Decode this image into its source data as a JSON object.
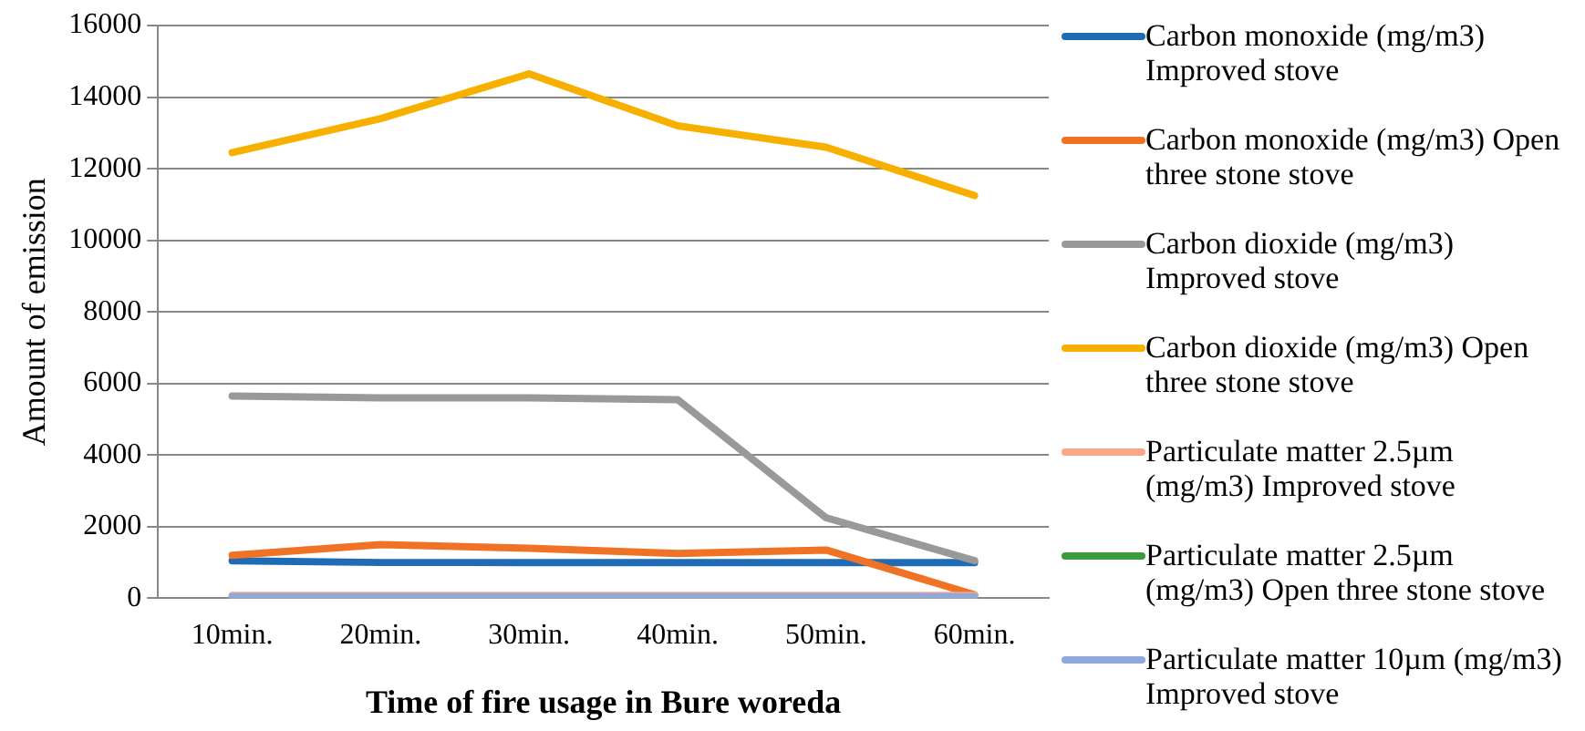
{
  "chart_data": {
    "type": "line",
    "xlabel": "Time of fire usage in Bure woreda",
    "ylabel": "Amount of emission",
    "categories": [
      "10min.",
      "20min.",
      "30min.",
      "40min.",
      "50min.",
      "60min."
    ],
    "series": [
      {
        "name": "Carbon monoxide (mg/m3) Improved stove",
        "color": "#1f6bb5",
        "values": [
          1050,
          1000,
          1000,
          1000,
          1000,
          1000
        ]
      },
      {
        "name": "Carbon monoxide (mg/m3) Open three stone stove",
        "color": "#ef7225",
        "values": [
          1200,
          1500,
          1400,
          1250,
          1350,
          100
        ]
      },
      {
        "name": "Carbon dioxide (mg/m3) Improved stove",
        "color": "#999999",
        "values": [
          5650,
          5600,
          5600,
          5550,
          2250,
          1050
        ]
      },
      {
        "name": "Carbon dioxide (mg/m3) Open three stone stove",
        "color": "#f7b000",
        "values": [
          12450,
          13400,
          14650,
          13200,
          12600,
          11250
        ]
      },
      {
        "name": "Particulate matter 2.5µm (mg/m3) Improved stove",
        "color": "#f9a68a",
        "values": [
          80,
          80,
          80,
          80,
          80,
          80
        ]
      },
      {
        "name": "Particulate matter 2.5µm (mg/m3) Open three stone stove",
        "color": "#3a9b3a",
        "values": [
          null,
          null,
          null,
          null,
          null,
          null
        ]
      },
      {
        "name": "Particulate matter 10µm (mg/m3) Improved stove",
        "color": "#8eaadc",
        "values": [
          40,
          40,
          40,
          40,
          40,
          40
        ]
      }
    ],
    "ylim": [
      0,
      16000
    ],
    "yticks": [
      0,
      2000,
      4000,
      6000,
      8000,
      10000,
      12000,
      14000,
      16000
    ],
    "grid": "y",
    "legend": "right",
    "line_style": "solid",
    "marker": "none"
  }
}
